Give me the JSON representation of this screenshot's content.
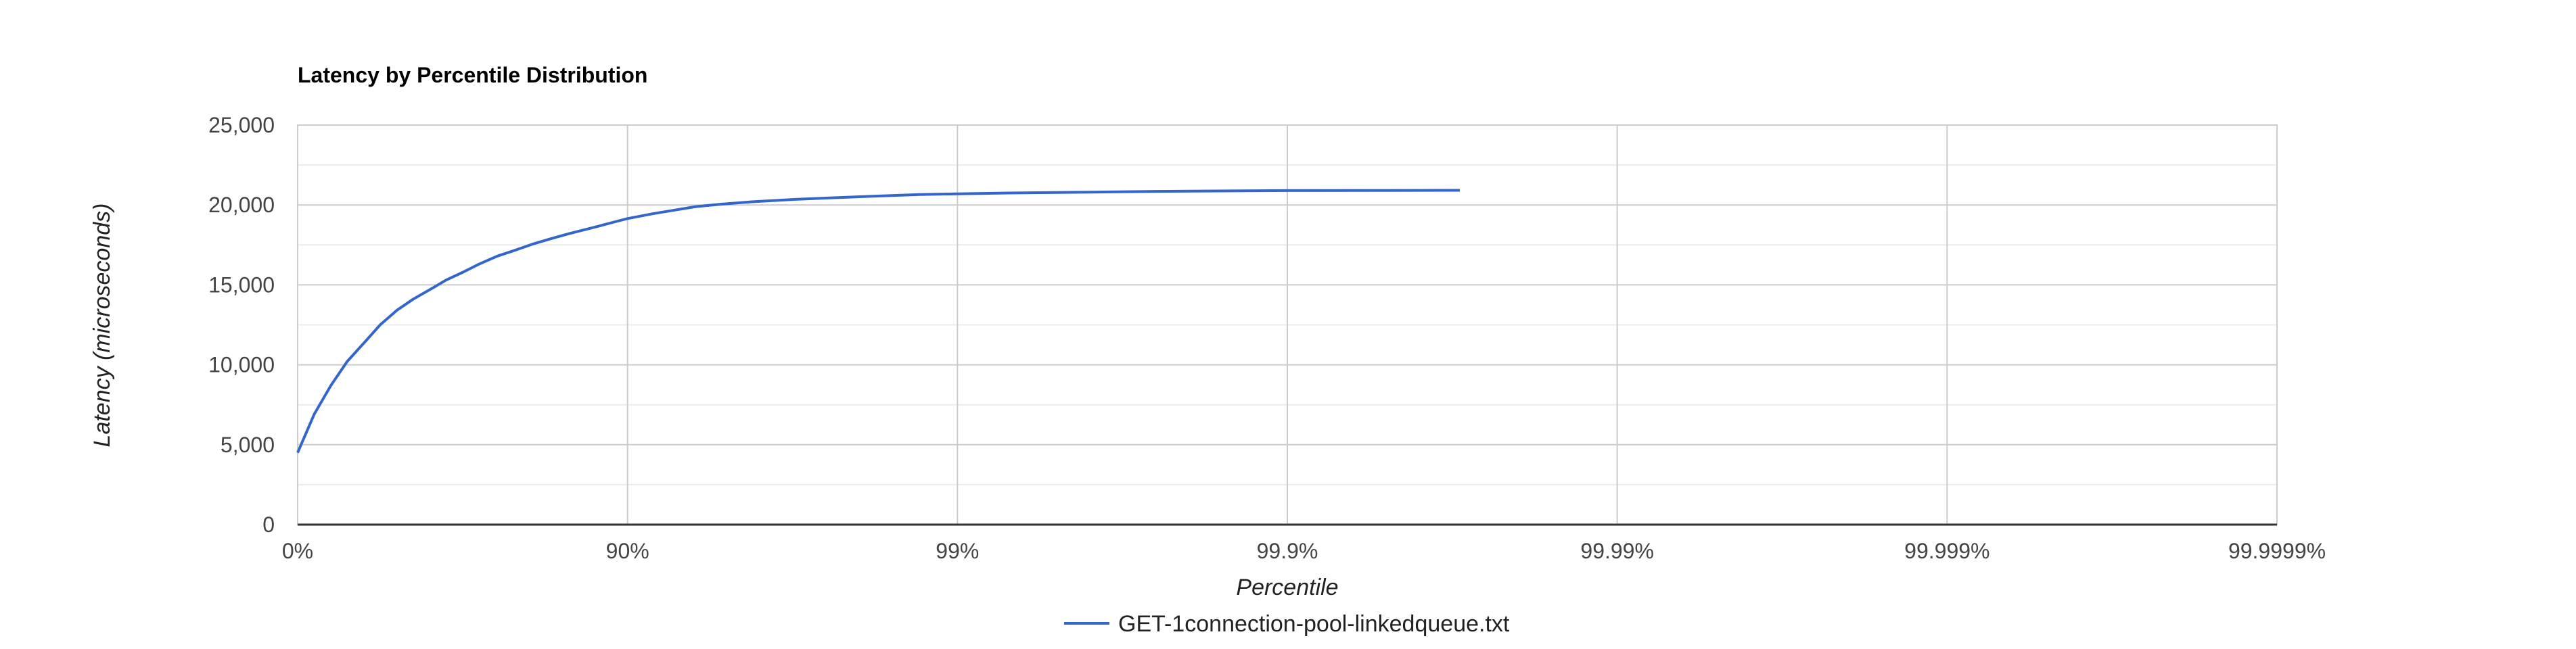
{
  "chart_data": {
    "type": "line",
    "title": "Latency by Percentile Distribution",
    "xlabel": "Percentile",
    "ylabel": "Latency (microseconds)",
    "x_scale": "log-inverse-percentile",
    "x_ticks": [
      {
        "value": 0,
        "label": "0%"
      },
      {
        "value": 90,
        "label": "90%"
      },
      {
        "value": 99,
        "label": "99%"
      },
      {
        "value": 99.9,
        "label": "99.9%"
      },
      {
        "value": 99.99,
        "label": "99.99%"
      },
      {
        "value": 99.999,
        "label": "99.999%"
      },
      {
        "value": 99.9999,
        "label": "99.9999%"
      }
    ],
    "ylim": [
      0,
      25000
    ],
    "y_ticks": [
      {
        "value": 0,
        "label": "0"
      },
      {
        "value": 5000,
        "label": "5,000"
      },
      {
        "value": 10000,
        "label": "10,000"
      },
      {
        "value": 15000,
        "label": "15,000"
      },
      {
        "value": 20000,
        "label": "20,000"
      },
      {
        "value": 25000,
        "label": "25,000"
      }
    ],
    "grid": true,
    "legend_position": "bottom",
    "series": [
      {
        "name": "GET-1connection-pool-linkedqueue.txt",
        "color": "#3366cc",
        "points": [
          [
            0,
            4500
          ],
          [
            10.9,
            6900
          ],
          [
            20.7,
            8700
          ],
          [
            29.2,
            10200
          ],
          [
            37.9,
            11500
          ],
          [
            43.8,
            12500
          ],
          [
            49.9,
            13400
          ],
          [
            55.3,
            14100
          ],
          [
            61.0,
            14800
          ],
          [
            64.5,
            15300
          ],
          [
            68.5,
            15800
          ],
          [
            71.8,
            16300
          ],
          [
            75.2,
            16800
          ],
          [
            78.3,
            17200
          ],
          [
            80.6,
            17550
          ],
          [
            83.0,
            17900
          ],
          [
            84.9,
            18200
          ],
          [
            86.5,
            18450
          ],
          [
            87.9,
            18700
          ],
          [
            89.1,
            18950
          ],
          [
            90.0,
            19150
          ],
          [
            91.6,
            19450
          ],
          [
            92.9,
            19700
          ],
          [
            93.8,
            19900
          ],
          [
            94.8,
            20050
          ],
          [
            95.8,
            20200
          ],
          [
            96.9,
            20350
          ],
          [
            97.6,
            20450
          ],
          [
            98.2,
            20550
          ],
          [
            98.7,
            20650
          ],
          [
            99.0,
            20700
          ],
          [
            99.3,
            20750
          ],
          [
            99.6,
            20800
          ],
          [
            99.75,
            20850
          ],
          [
            99.85,
            20880
          ],
          [
            99.9,
            20900
          ],
          [
            99.95,
            20910
          ],
          [
            99.97,
            20920
          ]
        ]
      }
    ]
  }
}
